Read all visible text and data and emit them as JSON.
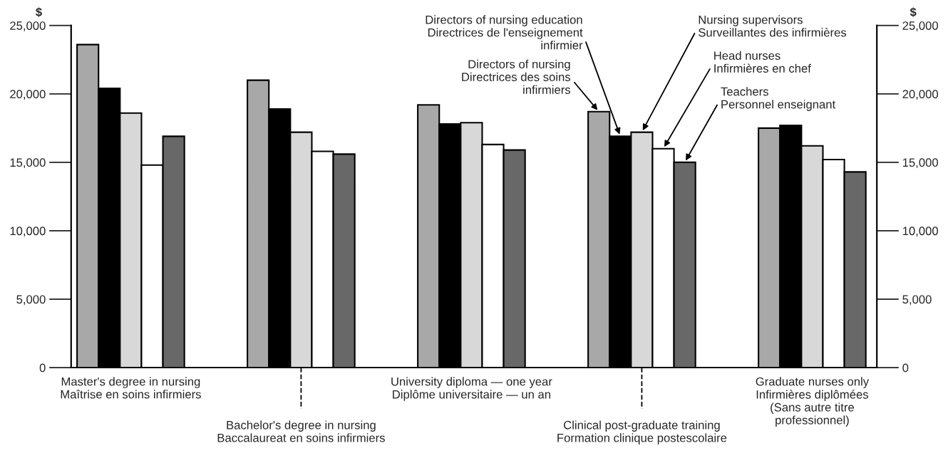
{
  "chart_data": {
    "type": "bar",
    "categories": [
      "Master's degree in nursing\nMaîtrise en soins infirmiers",
      "Bachelor's degree in nursing\nBaccalaureat en soins infirmiers",
      "University diploma — one year\nDiplôme universitaire — un an",
      "Clinical post-graduate training\nFormation clinique postescolaire",
      "Graduate nurses only\nInfirmières diplômées\n(Sans autre titre\nprofessionnel)"
    ],
    "series": [
      {
        "name": "Directors of nursing\nDirectrices des soins\ninfirmiers",
        "color": "#a8a8a8",
        "values": [
          23600,
          21000,
          19200,
          18700,
          17500
        ]
      },
      {
        "name": "Directors of nursing education\nDirectrices de l'enseignement\ninfirmier",
        "color": "#000000",
        "values": [
          20400,
          18900,
          17800,
          16900,
          17700
        ]
      },
      {
        "name": "Nursing supervisors\nSurveillantes des infirmières",
        "color": "#d8d8d8",
        "values": [
          18600,
          17200,
          17900,
          17200,
          16200
        ]
      },
      {
        "name": "Head nurses\nInfirmières en chef",
        "color": "#ffffff",
        "values": [
          14800,
          15800,
          16300,
          16000,
          15200
        ]
      },
      {
        "name": "Teachers\nPersonnel enseignant",
        "color": "#686868",
        "values": [
          16900,
          15600,
          15900,
          15000,
          14300
        ]
      }
    ],
    "ylabel": "$",
    "y2label": "$",
    "ylim": [
      0,
      25000
    ],
    "yticks": [
      0,
      {
        "value": 5000,
        "label": "5,000"
      },
      {
        "value": 10000,
        "label": "10,000"
      },
      {
        "value": 15000,
        "label": "15,000"
      },
      {
        "value": 20000,
        "label": "20,000"
      },
      {
        "value": 25000,
        "label": "25,000"
      }
    ],
    "y2lim": [
      0,
      25000
    ],
    "y2ticks": [
      0,
      {
        "value": 5000,
        "label": "5,000"
      },
      {
        "value": 10000,
        "label": "10,000"
      },
      {
        "value": 15000,
        "label": "15,000"
      },
      {
        "value": 20000,
        "label": "20,000"
      },
      {
        "value": 25000,
        "label": "25,000"
      }
    ],
    "grid": false,
    "legend": false
  }
}
